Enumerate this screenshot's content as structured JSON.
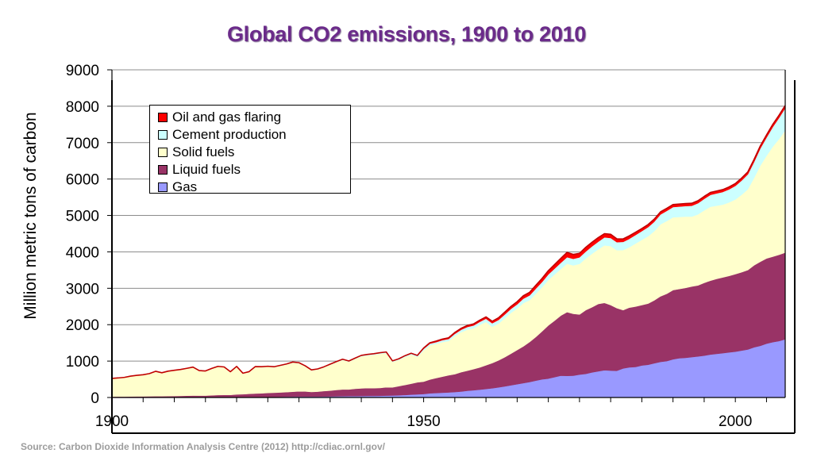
{
  "title": "Global CO2 emissions, 1900 to 2010",
  "source": "Source: Carbon Dioxide Information Analysis Centre (2012) http://cdiac.ornl.gov/",
  "chart_data": {
    "type": "area",
    "stacked": true,
    "title": "Global CO2 emissions, 1900 to 2010",
    "xlabel": "",
    "ylabel": "Million metric tons of carbon",
    "xlim": [
      1900,
      2008
    ],
    "ylim": [
      0,
      9000
    ],
    "x_ticks": [
      1900,
      1950,
      2000
    ],
    "y_ticks": [
      0,
      1000,
      2000,
      3000,
      4000,
      5000,
      6000,
      7000,
      8000,
      9000
    ],
    "grid": "horizontal",
    "legend_position": "top-left",
    "x": [
      1900,
      1901,
      1902,
      1903,
      1904,
      1905,
      1906,
      1907,
      1908,
      1909,
      1910,
      1911,
      1912,
      1913,
      1914,
      1915,
      1916,
      1917,
      1918,
      1919,
      1920,
      1921,
      1922,
      1923,
      1924,
      1925,
      1926,
      1927,
      1928,
      1929,
      1930,
      1931,
      1932,
      1933,
      1934,
      1935,
      1936,
      1937,
      1938,
      1939,
      1940,
      1941,
      1942,
      1943,
      1944,
      1945,
      1946,
      1947,
      1948,
      1949,
      1950,
      1951,
      1952,
      1953,
      1954,
      1955,
      1956,
      1957,
      1958,
      1959,
      1960,
      1961,
      1962,
      1963,
      1964,
      1965,
      1966,
      1967,
      1968,
      1969,
      1970,
      1971,
      1972,
      1973,
      1974,
      1975,
      1976,
      1977,
      1978,
      1979,
      1980,
      1981,
      1982,
      1983,
      1984,
      1985,
      1986,
      1987,
      1988,
      1989,
      1990,
      1991,
      1992,
      1993,
      1994,
      1995,
      1996,
      1997,
      1998,
      1999,
      2000,
      2001,
      2002,
      2003,
      2004,
      2005,
      2006,
      2007,
      2008
    ],
    "series": [
      {
        "name": "Gas",
        "color": "#9999ff",
        "values": [
          3,
          4,
          4,
          5,
          5,
          5,
          5,
          6,
          6,
          6,
          7,
          7,
          8,
          8,
          8,
          9,
          9,
          10,
          10,
          11,
          11,
          12,
          13,
          14,
          15,
          17,
          18,
          20,
          22,
          24,
          26,
          26,
          25,
          26,
          28,
          30,
          33,
          36,
          38,
          40,
          42,
          44,
          46,
          48,
          52,
          55,
          62,
          70,
          80,
          88,
          97,
          115,
          124,
          133,
          141,
          150,
          165,
          185,
          200,
          215,
          235,
          255,
          280,
          305,
          335,
          365,
          395,
          425,
          465,
          500,
          520,
          560,
          600,
          595,
          600,
          630,
          650,
          690,
          720,
          750,
          740,
          735,
          800,
          830,
          840,
          880,
          900,
          940,
          980,
          1000,
          1050,
          1080,
          1090,
          1110,
          1130,
          1150,
          1180,
          1200,
          1220,
          1240,
          1260,
          1290,
          1320,
          1380,
          1420,
          1480,
          1520,
          1550,
          1600
        ]
      },
      {
        "name": "Liquid fuels",
        "color": "#993366",
        "values": [
          20,
          21,
          22,
          24,
          26,
          27,
          28,
          30,
          30,
          32,
          35,
          38,
          42,
          46,
          45,
          44,
          52,
          58,
          62,
          60,
          75,
          78,
          88,
          95,
          100,
          110,
          115,
          120,
          125,
          135,
          145,
          140,
          130,
          135,
          150,
          160,
          175,
          185,
          185,
          200,
          210,
          215,
          210,
          215,
          230,
          225,
          250,
          275,
          300,
          330,
          340,
          380,
          410,
          440,
          470,
          490,
          530,
          550,
          580,
          610,
          650,
          690,
          740,
          800,
          870,
          940,
          1010,
          1100,
          1200,
          1320,
          1460,
          1550,
          1650,
          1750,
          1700,
          1650,
          1750,
          1790,
          1850,
          1850,
          1800,
          1720,
          1600,
          1640,
          1660,
          1660,
          1680,
          1730,
          1800,
          1850,
          1900,
          1900,
          1920,
          1940,
          1950,
          2000,
          2030,
          2060,
          2080,
          2100,
          2130,
          2150,
          2180,
          2250,
          2310,
          2340,
          2350,
          2370,
          2380
        ]
      },
      {
        "name": "Solid fuels",
        "color": "#ffffcc",
        "values": [
          500,
          510,
          525,
          555,
          575,
          590,
          620,
          680,
          640,
          680,
          700,
          720,
          745,
          775,
          680,
          670,
          730,
          780,
          760,
          630,
          760,
          570,
          600,
          730,
          720,
          720,
          700,
          730,
          760,
          800,
          770,
          690,
          590,
          610,
          650,
          710,
          760,
          810,
          760,
          820,
          880,
          900,
          920,
          940,
          940,
          700,
          720,
          770,
          800,
          700,
          860,
          940,
          940,
          950,
          940,
          1050,
          1100,
          1130,
          1120,
          1170,
          1190,
          1000,
          1010,
          1070,
          1120,
          1140,
          1190,
          1150,
          1190,
          1210,
          1250,
          1270,
          1280,
          1330,
          1330,
          1390,
          1420,
          1470,
          1500,
          1580,
          1620,
          1590,
          1650,
          1660,
          1730,
          1790,
          1850,
          1900,
          1980,
          2000,
          2000,
          1980,
          1960,
          1920,
          1950,
          1990,
          2030,
          2010,
          2000,
          2020,
          2050,
          2130,
          2220,
          2400,
          2640,
          2820,
          3020,
          3180,
          3360
        ]
      },
      {
        "name": "Cement production",
        "color": "#ccffff",
        "values": [
          2,
          2,
          2,
          3,
          3,
          3,
          4,
          4,
          4,
          5,
          5,
          5,
          6,
          6,
          6,
          6,
          7,
          7,
          7,
          7,
          8,
          8,
          9,
          10,
          10,
          11,
          12,
          13,
          14,
          15,
          15,
          14,
          13,
          13,
          15,
          16,
          18,
          20,
          20,
          22,
          24,
          25,
          26,
          27,
          28,
          26,
          30,
          33,
          36,
          38,
          40,
          44,
          48,
          52,
          56,
          60,
          66,
          72,
          78,
          84,
          90,
          96,
          100,
          105,
          110,
          115,
          122,
          130,
          138,
          146,
          153,
          160,
          170,
          180,
          180,
          180,
          190,
          200,
          210,
          220,
          222,
          222,
          225,
          230,
          235,
          240,
          250,
          260,
          270,
          276,
          280,
          284,
          288,
          296,
          306,
          316,
          326,
          336,
          346,
          358,
          372,
          390,
          410,
          440,
          470,
          500,
          540,
          580,
          610
        ]
      },
      {
        "name": "Oil and gas flaring",
        "color": "#ff0000",
        "values": [
          0,
          0,
          0,
          0,
          0,
          0,
          0,
          0,
          0,
          0,
          0,
          0,
          0,
          0,
          0,
          0,
          0,
          0,
          0,
          0,
          0,
          0,
          0,
          0,
          0,
          0,
          0,
          0,
          0,
          0,
          0,
          0,
          0,
          0,
          0,
          0,
          0,
          0,
          0,
          0,
          0,
          0,
          0,
          0,
          0,
          0,
          0,
          0,
          0,
          0,
          23,
          25,
          28,
          30,
          33,
          35,
          38,
          40,
          43,
          45,
          48,
          52,
          58,
          62,
          66,
          72,
          78,
          84,
          90,
          95,
          100,
          110,
          120,
          130,
          120,
          110,
          115,
          112,
          110,
          100,
          100,
          90,
          80,
          80,
          75,
          70,
          70,
          70,
          70,
          70,
          70,
          70,
          68,
          68,
          68,
          66,
          66,
          66,
          65,
          65,
          65,
          66,
          66,
          68,
          68,
          70,
          70,
          70,
          70
        ]
      }
    ]
  }
}
